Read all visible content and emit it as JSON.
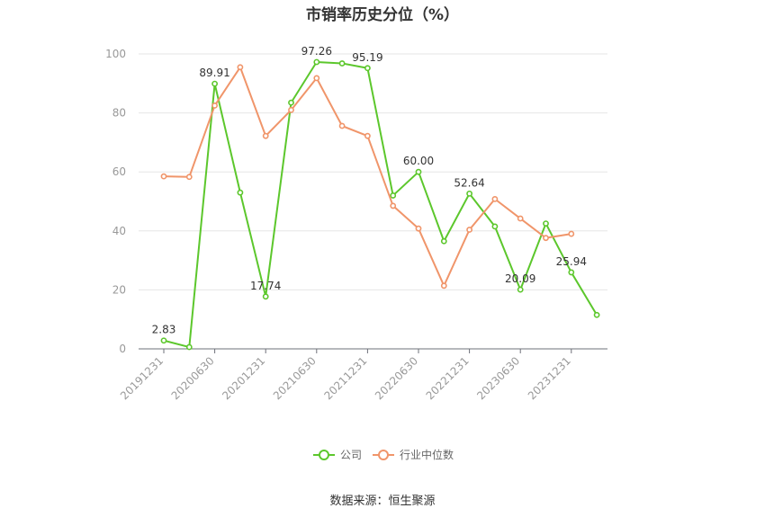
{
  "chart_data": {
    "type": "line",
    "title": "市销率历史分位（%）",
    "x": [
      "20191231",
      "20200331",
      "20200630",
      "20200930",
      "20201231",
      "20210331",
      "20210630",
      "20210930",
      "20211231",
      "20220331",
      "20220630",
      "20220930",
      "20221231",
      "20230331",
      "20230630",
      "20230930",
      "20231231",
      "20240331"
    ],
    "xticks": [
      "20191231",
      "20200630",
      "20201231",
      "20210630",
      "20211231",
      "20220630",
      "20221231",
      "20230630",
      "20231231"
    ],
    "ylim": [
      0,
      100
    ],
    "yticks": [
      0,
      20,
      40,
      60,
      80,
      100
    ],
    "grid": true,
    "legend_position": "bottom",
    "series": [
      {
        "name": "公司",
        "color": "#5cc72c",
        "values": [
          2.83,
          0.6,
          89.91,
          53.0,
          17.74,
          83.5,
          97.26,
          96.8,
          95.19,
          52.0,
          60.0,
          36.5,
          52.64,
          41.5,
          20.09,
          42.5,
          25.94,
          11.5
        ],
        "labels": [
          {
            "index": 0,
            "text": "2.83"
          },
          {
            "index": 2,
            "text": "89.91"
          },
          {
            "index": 4,
            "text": "17.74"
          },
          {
            "index": 6,
            "text": "97.26"
          },
          {
            "index": 8,
            "text": "95.19"
          },
          {
            "index": 10,
            "text": "60.00"
          },
          {
            "index": 12,
            "text": "52.64"
          },
          {
            "index": 14,
            "text": "20.09"
          },
          {
            "index": 16,
            "text": "25.94"
          }
        ]
      },
      {
        "name": "行业中位数",
        "color": "#f0956a",
        "values": [
          58.5,
          58.3,
          82.5,
          95.5,
          72.2,
          81.0,
          91.8,
          75.6,
          72.2,
          48.5,
          40.8,
          21.4,
          40.4,
          50.8,
          44.2,
          37.6,
          39.0,
          null
        ]
      }
    ]
  },
  "source_text": "数据来源：恒生聚源"
}
